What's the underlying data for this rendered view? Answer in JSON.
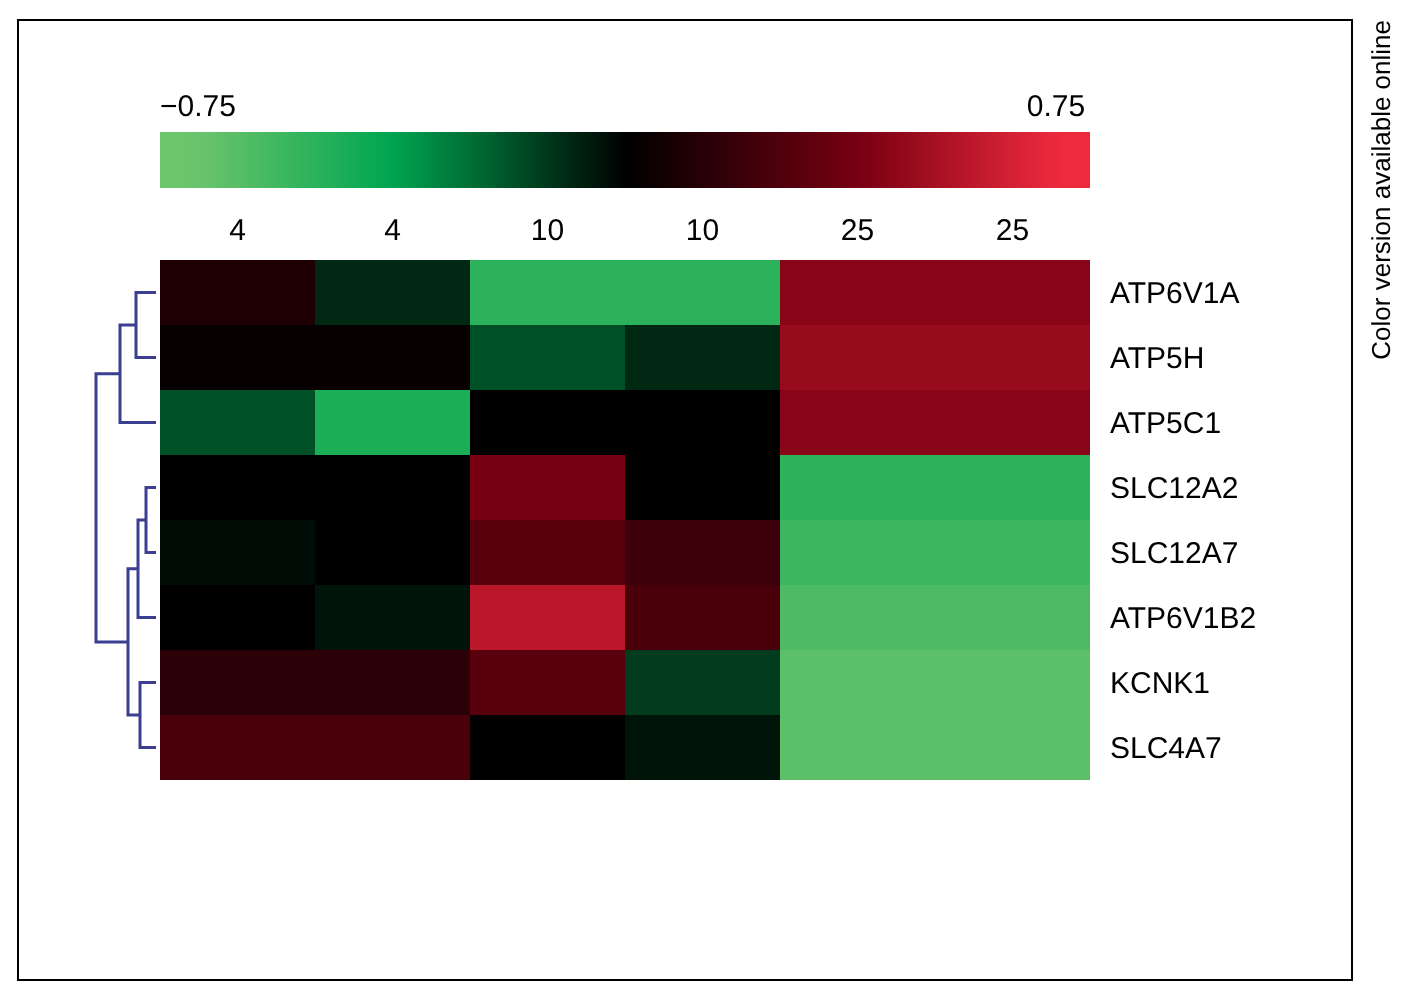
{
  "chart_data": {
    "type": "heatmap",
    "categories": [
      "4",
      "4",
      "10",
      "10",
      "25",
      "25"
    ],
    "y_categories": [
      "ATP6V1A",
      "ATP5H",
      "ATP5C1",
      "SLC12A2",
      "SLC12A7",
      "ATP6V1B2",
      "KCNK1",
      "SLC4A7"
    ],
    "cells": [
      [
        0.1,
        -0.1,
        -0.55,
        -0.55,
        0.45,
        0.45
      ],
      [
        0.02,
        0.02,
        -0.2,
        -0.1,
        0.5,
        0.5
      ],
      [
        -0.2,
        -0.5,
        0,
        0,
        0.45,
        0.45
      ],
      [
        0,
        0,
        0.4,
        0,
        -0.55,
        -0.55
      ],
      [
        -0.03,
        0,
        0.3,
        0.2,
        -0.6,
        -0.6
      ],
      [
        0,
        -0.05,
        0.6,
        0.25,
        -0.65,
        -0.65
      ],
      [
        0.15,
        0.15,
        0.3,
        -0.15,
        -0.7,
        -0.7
      ],
      [
        0.25,
        0.25,
        0,
        -0.05,
        -0.7,
        -0.7
      ]
    ],
    "clim": [
      -0.75,
      0.75
    ],
    "cticks": [
      {
        "value": -0.75,
        "label": "−0.75"
      },
      0.75
    ],
    "annotations": [
      "Color version available online"
    ]
  }
}
